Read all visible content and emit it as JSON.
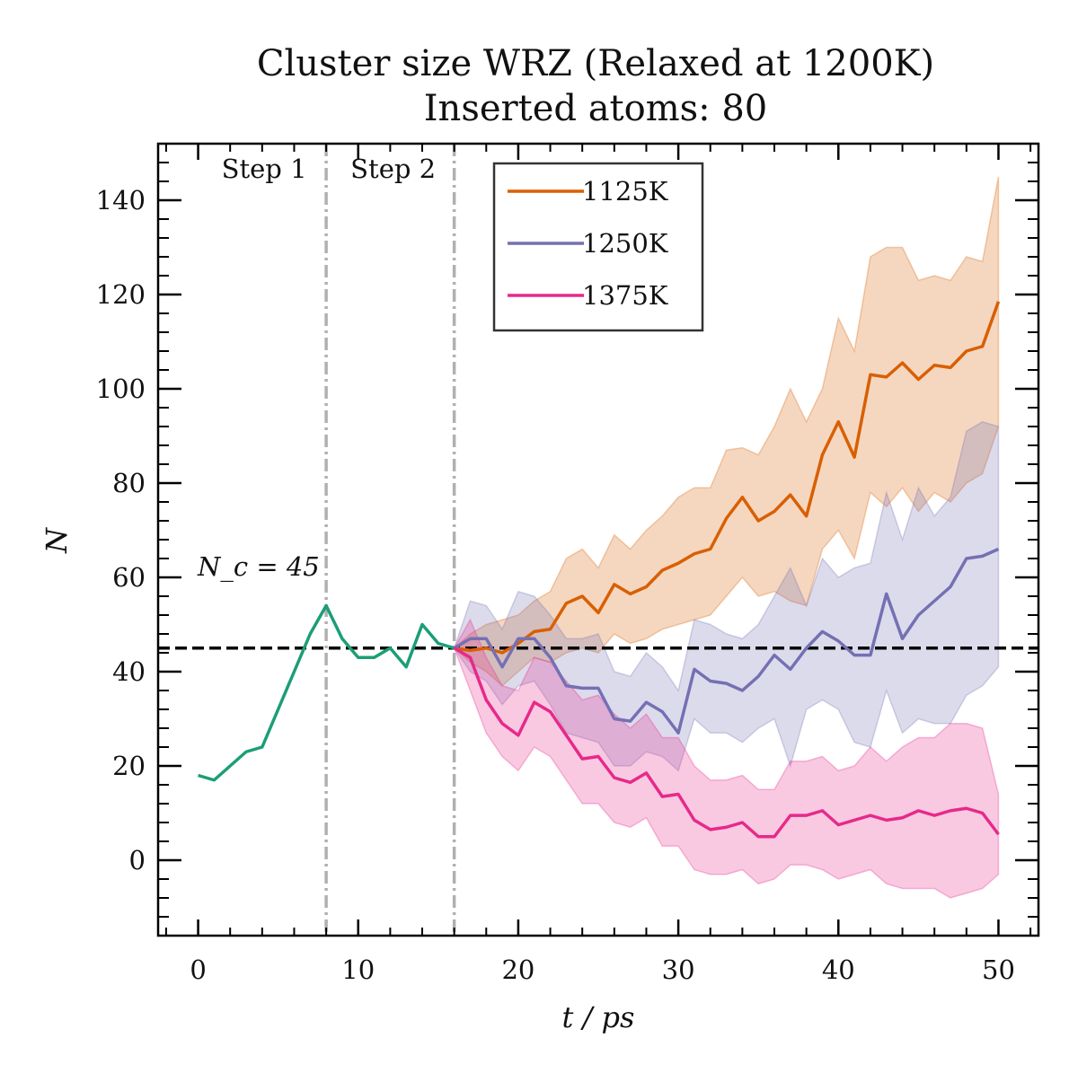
{
  "chart_data": {
    "type": "line",
    "title": "Cluster size WRZ (Relaxed at 1200K)",
    "subtitle": "Inserted atoms: 80",
    "xlabel": "t / ps",
    "ylabel": "N",
    "xlim": [
      -2.5,
      52.5
    ],
    "ylim": [
      -16,
      152
    ],
    "xticks": [
      0,
      10,
      20,
      30,
      40,
      50
    ],
    "yticks": [
      0,
      20,
      40,
      60,
      80,
      100,
      120,
      140
    ],
    "xtick_labels": [
      "0",
      "10",
      "20",
      "30",
      "40",
      "50"
    ],
    "ytick_labels": [
      "0",
      "20",
      "40",
      "60",
      "80",
      "100",
      "120",
      "140"
    ],
    "grid": false,
    "legend_position": "top-center",
    "critical_size": {
      "value": 45,
      "label": "N_c = 45"
    },
    "step_markers": [
      {
        "x": 8,
        "label": "Step 1"
      },
      {
        "x": 16,
        "label": "Step 2"
      }
    ],
    "initial_trajectory": {
      "color": "#1b9e77",
      "x": [
        0,
        1,
        2,
        3,
        4,
        5,
        6,
        7,
        8,
        9,
        10,
        11,
        12,
        13,
        14,
        15,
        16
      ],
      "y": [
        18,
        17,
        20,
        23,
        24,
        32,
        40,
        48,
        54,
        47,
        43,
        43,
        45,
        41,
        50,
        46,
        45
      ]
    },
    "series": [
      {
        "name": "1125K",
        "color": "#d95f02",
        "x": [
          16,
          17,
          18,
          19,
          20,
          21,
          22,
          23,
          24,
          25,
          26,
          27,
          28,
          29,
          30,
          31,
          32,
          33,
          34,
          35,
          36,
          37,
          38,
          39,
          40,
          41,
          42,
          43,
          44,
          45,
          46,
          47,
          48,
          49,
          50
        ],
        "y": [
          45,
          44.5,
          45,
          44,
          46,
          48.5,
          49,
          54.5,
          56,
          52.5,
          58.5,
          56.5,
          58,
          61.5,
          63,
          65,
          66,
          72.5,
          77,
          72,
          74,
          77.5,
          73,
          86,
          93,
          85.5,
          103,
          102.5,
          105.5,
          102,
          105,
          104.5,
          108,
          109,
          118.5
        ],
        "lower": [
          45,
          42,
          40,
          37,
          40,
          43,
          42,
          44,
          45,
          44,
          48,
          46,
          47,
          49,
          50,
          51,
          52,
          56,
          60,
          56,
          57,
          55,
          54,
          66,
          70,
          64,
          78,
          75,
          79,
          74,
          78,
          76,
          80,
          82,
          92
        ],
        "upper": [
          45,
          48,
          50,
          51,
          52,
          55,
          57,
          64,
          66,
          62,
          69,
          66,
          70,
          73,
          77,
          79,
          79,
          87,
          87.5,
          86,
          92,
          100,
          93,
          100,
          115,
          108,
          128,
          130,
          130,
          123,
          124,
          123,
          128,
          127,
          145
        ]
      },
      {
        "name": "1250K",
        "color": "#7570b3",
        "x": [
          16,
          17,
          18,
          19,
          20,
          21,
          22,
          23,
          24,
          25,
          26,
          27,
          28,
          29,
          30,
          31,
          32,
          33,
          34,
          35,
          36,
          37,
          38,
          39,
          40,
          41,
          42,
          43,
          44,
          45,
          46,
          47,
          48,
          49,
          50
        ],
        "y": [
          45,
          47,
          47,
          41,
          47,
          47,
          43,
          37,
          36.5,
          36.5,
          30,
          29.5,
          33.5,
          31.5,
          27,
          40.5,
          38,
          37.5,
          36,
          39,
          43.5,
          40.5,
          45,
          48.5,
          46.5,
          43.5,
          43.5,
          56.5,
          47,
          52,
          55,
          58,
          64,
          64.5,
          66
        ],
        "lower": [
          45,
          40,
          38,
          33,
          37,
          38,
          33,
          27,
          26,
          25,
          20,
          20,
          23,
          22,
          19,
          30,
          27,
          27,
          25,
          28,
          30,
          20,
          32,
          34,
          32,
          25,
          24,
          36,
          27,
          30,
          29,
          29,
          35,
          37,
          41
        ],
        "upper": [
          45,
          55,
          54,
          49,
          57,
          56,
          52,
          47,
          47,
          48,
          40,
          39,
          44,
          41,
          36,
          51,
          50,
          48,
          47,
          50,
          56,
          62,
          54,
          64,
          60,
          62,
          63,
          78,
          68,
          79,
          73,
          77,
          91,
          93,
          92
        ]
      },
      {
        "name": "1375K",
        "color": "#e7298a",
        "x": [
          16,
          17,
          18,
          19,
          20,
          21,
          22,
          23,
          24,
          25,
          26,
          27,
          28,
          29,
          30,
          31,
          32,
          33,
          34,
          35,
          36,
          37,
          38,
          39,
          40,
          41,
          42,
          43,
          44,
          45,
          46,
          47,
          48,
          49,
          50
        ],
        "y": [
          45,
          43,
          34,
          29,
          26.5,
          33.5,
          31.5,
          26.5,
          21.5,
          22,
          17.5,
          16.5,
          18.5,
          13.5,
          14,
          8.5,
          6.5,
          7,
          8,
          5,
          5,
          9.5,
          9.5,
          10.5,
          7.5,
          8.5,
          9.5,
          8.5,
          9,
          10.5,
          9.5,
          10.5,
          11,
          10,
          5.5
        ],
        "lower": [
          45,
          36,
          27,
          22,
          19,
          24,
          22,
          17,
          12,
          12,
          8,
          7,
          9,
          3,
          3,
          -2,
          -3,
          -3,
          -2,
          -5,
          -4,
          -1,
          -1,
          -2,
          -4,
          -3,
          -2,
          -5,
          -6,
          -6,
          -6,
          -8,
          -7,
          -6,
          -3
        ],
        "upper": [
          45,
          51,
          43,
          37,
          36,
          43,
          42,
          38,
          34,
          35,
          31,
          28,
          31,
          26,
          26,
          20,
          17,
          17,
          18,
          15,
          15,
          21,
          21,
          22,
          19,
          20,
          24,
          21,
          24,
          26,
          26,
          29,
          29,
          28,
          14
        ]
      }
    ]
  }
}
